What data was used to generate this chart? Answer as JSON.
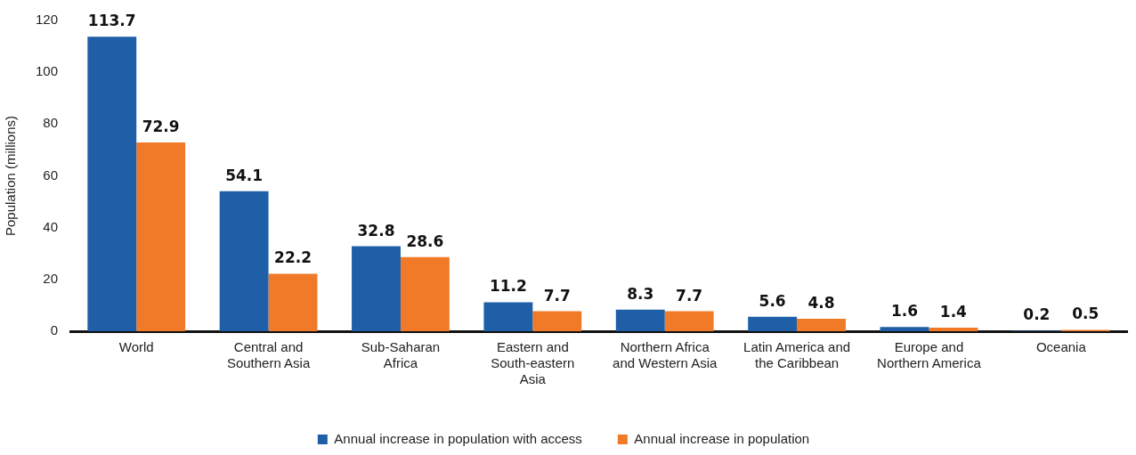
{
  "chart_data": {
    "type": "bar",
    "ylabel": "Population (millions)",
    "categories": [
      "World",
      "Central and Southern Asia",
      "Sub-Saharan Africa",
      "Eastern and South-eastern Asia",
      "Northern Africa and Western Asia",
      "Latin America and the Caribbean",
      "Europe and Northern America",
      "Oceania"
    ],
    "series": [
      {
        "name": "Annual increase in population with access",
        "color": "#1f5fa8",
        "values": [
          113.7,
          54.1,
          32.8,
          11.2,
          8.3,
          5.6,
          1.6,
          0.2
        ]
      },
      {
        "name": "Annual increase in population",
        "color": "#f07a28",
        "values": [
          72.9,
          22.2,
          28.6,
          7.7,
          7.7,
          4.8,
          1.4,
          0.5
        ]
      }
    ],
    "ylim": [
      0,
      120
    ],
    "yticks": [
      0,
      20,
      40,
      60,
      80,
      100,
      120
    ],
    "grid": false,
    "legend": "bottom",
    "data_labels": true
  }
}
